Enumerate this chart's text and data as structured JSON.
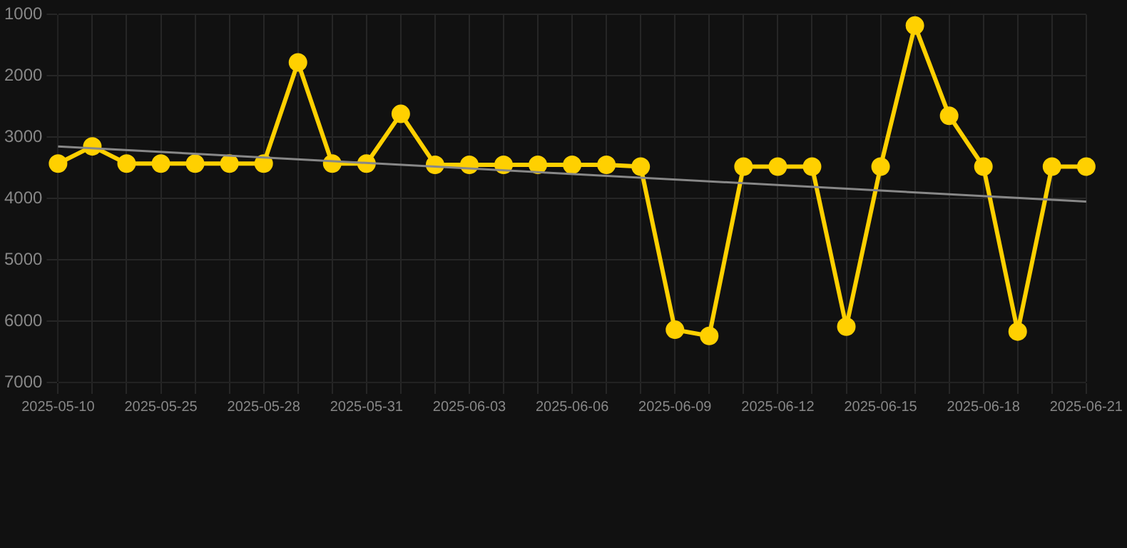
{
  "chart_data": {
    "type": "line",
    "categories": [
      "2025-05-10",
      null,
      null,
      "2025-05-25",
      null,
      null,
      "2025-05-28",
      null,
      null,
      "2025-05-31",
      null,
      null,
      "2025-06-03",
      null,
      null,
      "2025-06-06",
      null,
      null,
      "2025-06-09",
      null,
      null,
      "2025-06-12",
      null,
      null,
      "2025-06-15",
      null,
      null,
      "2025-06-18",
      null,
      null,
      "2025-06-21"
    ],
    "series": [
      {
        "color": "#ffd000",
        "marker": "circle",
        "values": [
          3430,
          3150,
          3430,
          3430,
          3430,
          3430,
          3430,
          1780,
          3430,
          3430,
          2620,
          3450,
          3450,
          3450,
          3450,
          3450,
          3450,
          3480,
          6140,
          6240,
          3480,
          3480,
          3480,
          6090,
          3480,
          1180,
          2650,
          3480,
          6170,
          3480,
          3480
        ]
      },
      {
        "type": "line",
        "color": "#888888",
        "marker": "none",
        "values": [
          3150,
          null,
          null,
          null,
          null,
          null,
          null,
          null,
          null,
          null,
          null,
          null,
          null,
          null,
          null,
          null,
          null,
          null,
          null,
          null,
          null,
          null,
          null,
          null,
          null,
          null,
          null,
          null,
          null,
          null,
          4050
        ]
      }
    ],
    "ylim": [
      7000,
      1000
    ],
    "yticks": [
      1000,
      2000,
      3000,
      4000,
      5000,
      6000,
      7000
    ],
    "grid": true,
    "legend": false
  }
}
